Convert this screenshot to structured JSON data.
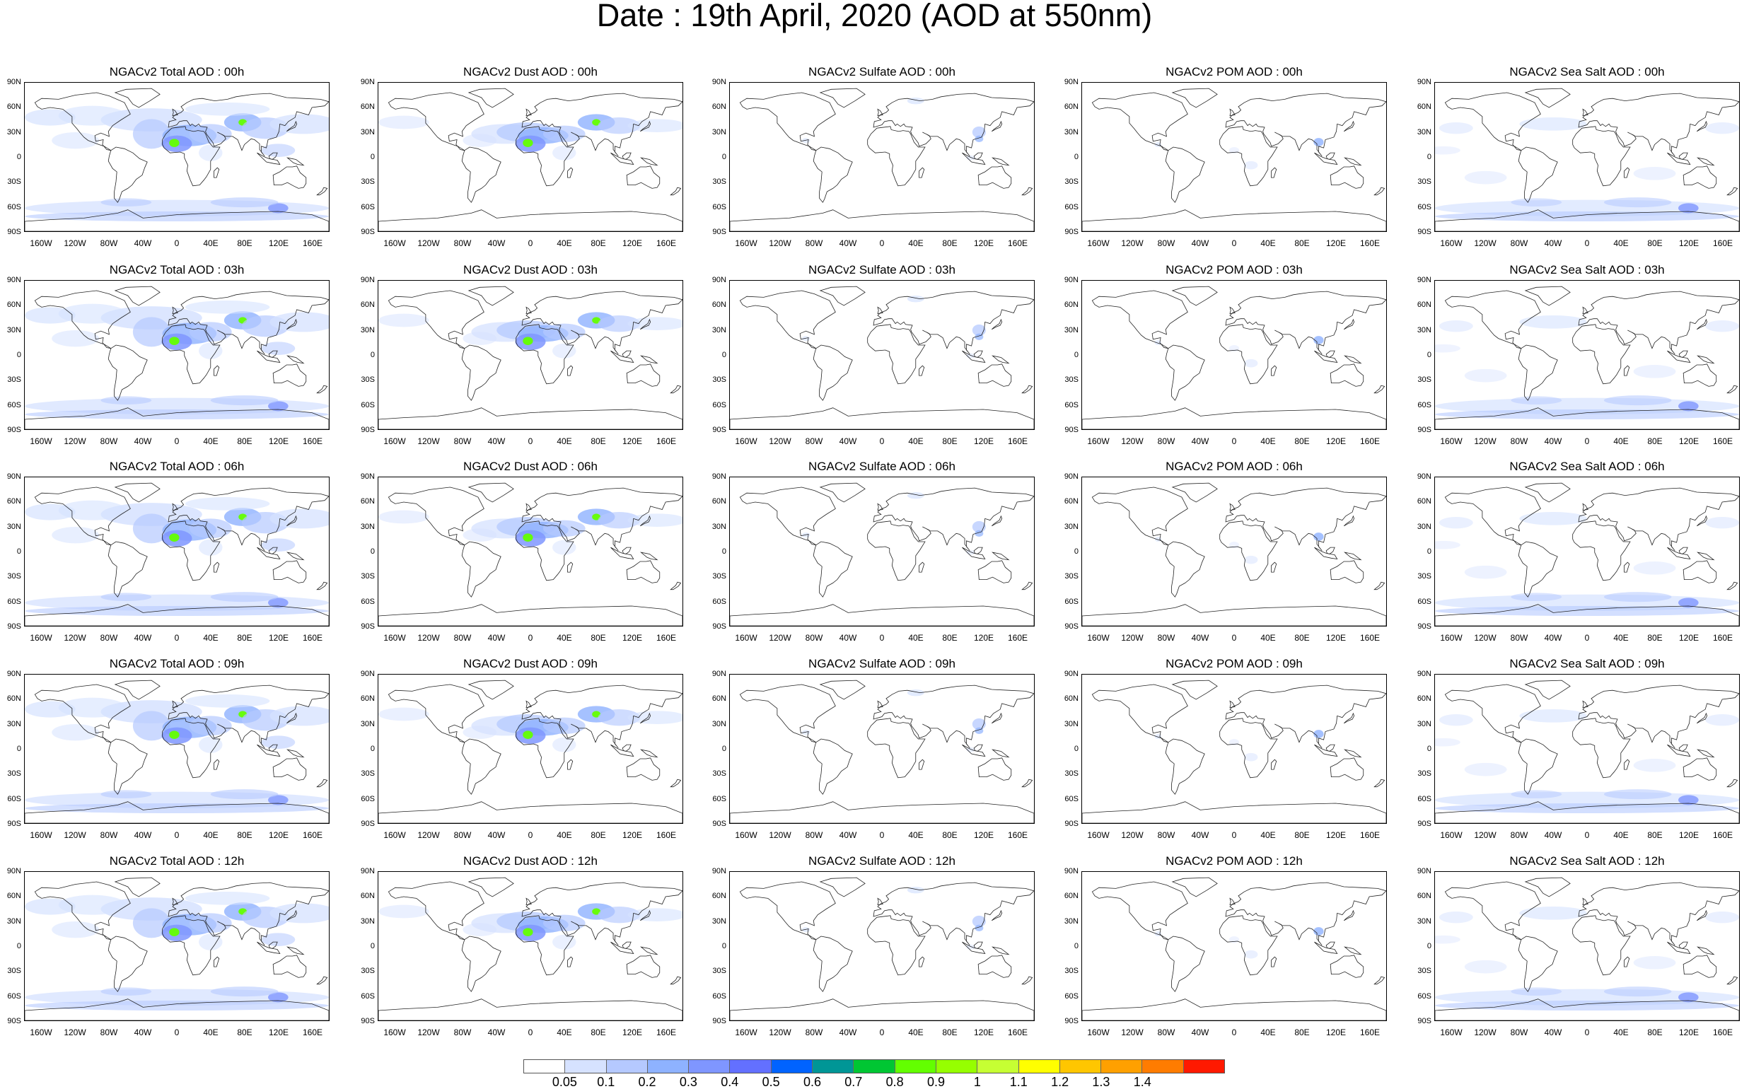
{
  "title": "Date : 19th April, 2020 (AOD at 550nm)",
  "lat_ticks": [
    "90N",
    "60N",
    "30N",
    "0",
    "30S",
    "60S",
    "90S"
  ],
  "lon_ticks": [
    "160W",
    "120W",
    "80W",
    "40W",
    "0",
    "40E",
    "80E",
    "120E",
    "160E"
  ],
  "panels": [
    {
      "title": "NGACv2 Total AOD : 00h",
      "species": "total",
      "hour": "00h"
    },
    {
      "title": "NGACv2 Dust AOD : 00h",
      "species": "dust",
      "hour": "00h"
    },
    {
      "title": "NGACv2 Sulfate AOD : 00h",
      "species": "sulfate",
      "hour": "00h"
    },
    {
      "title": "NGACv2 POM AOD : 00h",
      "species": "pom",
      "hour": "00h"
    },
    {
      "title": "NGACv2 Sea Salt AOD : 00h",
      "species": "seasalt",
      "hour": "00h"
    },
    {
      "title": "NGACv2 Total AOD : 03h",
      "species": "total",
      "hour": "03h"
    },
    {
      "title": "NGACv2 Dust AOD : 03h",
      "species": "dust",
      "hour": "03h"
    },
    {
      "title": "NGACv2 Sulfate AOD : 03h",
      "species": "sulfate",
      "hour": "03h"
    },
    {
      "title": "NGACv2 POM AOD : 03h",
      "species": "pom",
      "hour": "03h"
    },
    {
      "title": "NGACv2 Sea Salt AOD : 03h",
      "species": "seasalt",
      "hour": "03h"
    },
    {
      "title": "NGACv2 Total AOD : 06h",
      "species": "total",
      "hour": "06h"
    },
    {
      "title": "NGACv2 Dust AOD : 06h",
      "species": "dust",
      "hour": "06h"
    },
    {
      "title": "NGACv2 Sulfate AOD : 06h",
      "species": "sulfate",
      "hour": "06h"
    },
    {
      "title": "NGACv2 POM AOD : 06h",
      "species": "pom",
      "hour": "06h"
    },
    {
      "title": "NGACv2 Sea Salt AOD : 06h",
      "species": "seasalt",
      "hour": "06h"
    },
    {
      "title": "NGACv2 Total AOD : 09h",
      "species": "total",
      "hour": "09h"
    },
    {
      "title": "NGACv2 Dust AOD : 09h",
      "species": "dust",
      "hour": "09h"
    },
    {
      "title": "NGACv2 Sulfate AOD : 09h",
      "species": "sulfate",
      "hour": "09h"
    },
    {
      "title": "NGACv2 POM AOD : 09h",
      "species": "pom",
      "hour": "09h"
    },
    {
      "title": "NGACv2 Sea Salt  AOD : 09h",
      "species": "seasalt",
      "hour": "09h"
    },
    {
      "title": "NGACv2 Total AOD : 12h",
      "species": "total",
      "hour": "12h"
    },
    {
      "title": "NGACv2 Dust AOD : 12h",
      "species": "dust",
      "hour": "12h"
    },
    {
      "title": "NGACv2 Sulfate AOD : 12h",
      "species": "sulfate",
      "hour": "12h"
    },
    {
      "title": "NGACv2 POM  AOD : 12h",
      "species": "pom",
      "hour": "12h"
    },
    {
      "title": "NGACv2 Sea Salt AOD : 12h",
      "species": "seasalt",
      "hour": "12h"
    }
  ],
  "colorbar": {
    "labels": [
      "0.05",
      "0.1",
      "0.2",
      "0.3",
      "0.4",
      "0.5",
      "0.6",
      "0.7",
      "0.8",
      "0.9",
      "1",
      "1.1",
      "1.2",
      "1.3",
      "1.4"
    ],
    "colors": [
      "#ffffff",
      "#d6e2ff",
      "#b5c9ff",
      "#8eb2ff",
      "#7f96ff",
      "#6370ff",
      "#0063ff",
      "#009696",
      "#00c633",
      "#63ff00",
      "#96ff00",
      "#c6ff33",
      "#ffff00",
      "#ffc600",
      "#ffa000",
      "#ff7c00",
      "#ff1900"
    ]
  }
}
